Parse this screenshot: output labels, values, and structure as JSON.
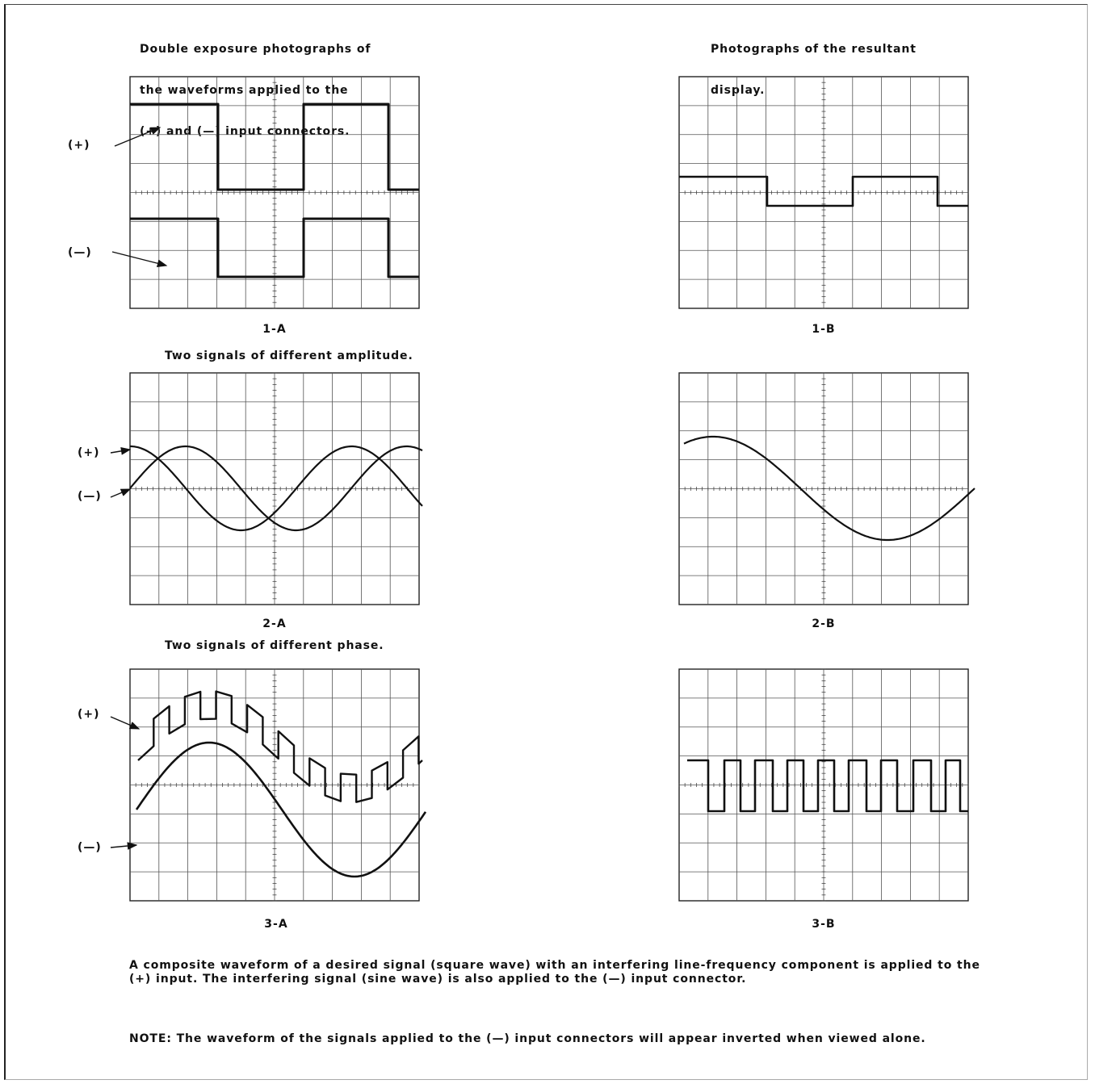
{
  "header": {
    "left": [
      "Double exposure photographs of",
      "the waveforms applied to the",
      "(+) and (—) input connectors."
    ],
    "right": [
      "Photographs of the resultant",
      "display."
    ]
  },
  "subtitles": {
    "amplitude": "Two signals of different amplitude.",
    "phase": "Two signals of different phase."
  },
  "input_labels": {
    "plus": "(+)",
    "minus": "(—)"
  },
  "panels": [
    {
      "id": "1-A",
      "caption": "1-A"
    },
    {
      "id": "1-B",
      "caption": "1-B"
    },
    {
      "id": "2-A",
      "caption": "2-A"
    },
    {
      "id": "2-B",
      "caption": "2-B"
    },
    {
      "id": "3-A",
      "caption": "3-A"
    },
    {
      "id": "3-B",
      "caption": "3-B"
    }
  ],
  "footer": {
    "description": "A composite waveform of a desired signal (square wave) with an interfering line-frequency component is applied to the (+) input. The interfering signal (sine wave) is also applied to the (—) input connector.",
    "note": "NOTE: The waveform of the signals applied to the (—) input connectors will appear inverted when viewed alone."
  },
  "colors": {
    "ink": "#111111",
    "grid": "#333333"
  }
}
